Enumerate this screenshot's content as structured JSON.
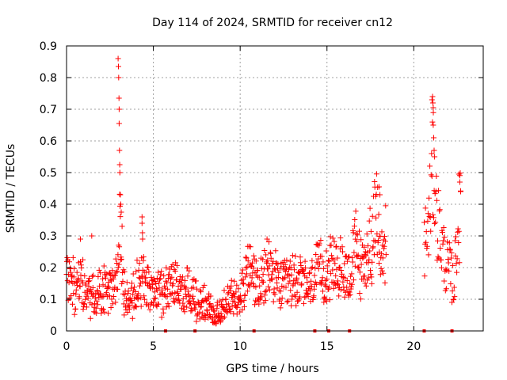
{
  "chart_data": {
    "type": "scatter",
    "title": "Day 114 of 2024, SRMTID for receiver cn12",
    "xlabel": "GPS time / hours",
    "ylabel": "SRMTID / TECUs",
    "xlim": [
      0,
      24
    ],
    "ylim": [
      0,
      0.9
    ],
    "x_ticks": [
      0,
      5,
      10,
      15,
      20
    ],
    "x_tick_labels": [
      "0",
      "5",
      "10",
      "15",
      "20"
    ],
    "y_ticks": [
      0,
      0.1,
      0.2,
      0.3,
      0.4,
      0.5,
      0.6,
      0.7,
      0.8,
      0.9
    ],
    "y_tick_labels": [
      "0",
      "0.1",
      "0.2",
      "0.3",
      "0.4",
      "0.5",
      "0.6",
      "0.7",
      "0.8",
      "0.9"
    ],
    "grid": true,
    "marker": "+",
    "color": "#ff0000",
    "profile_hours": [
      0,
      0.3,
      0.6,
      0.8,
      1.2,
      1.6,
      2.0,
      2.4,
      2.7,
      2.95,
      3.05,
      3.3,
      3.6,
      4.0,
      4.3,
      4.6,
      5.0,
      5.4,
      5.8,
      6.2,
      6.6,
      7.0,
      7.4,
      7.8,
      8.2,
      8.6,
      9.0,
      9.4,
      9.8,
      10.2,
      10.5,
      10.8,
      11.1,
      11.4,
      11.7,
      12.0,
      12.4,
      12.8,
      13.2,
      13.6,
      14.0,
      14.4,
      14.8,
      15.2,
      15.6,
      16.0,
      16.4,
      16.7,
      17.0,
      17.3,
      17.6,
      17.9,
      18.1,
      18.4
    ],
    "profile_levels": [
      0.17,
      0.14,
      0.16,
      0.18,
      0.11,
      0.12,
      0.13,
      0.14,
      0.14,
      0.15,
      0.35,
      0.13,
      0.11,
      0.13,
      0.17,
      0.15,
      0.13,
      0.12,
      0.14,
      0.15,
      0.13,
      0.12,
      0.11,
      0.09,
      0.07,
      0.06,
      0.07,
      0.09,
      0.11,
      0.15,
      0.2,
      0.17,
      0.13,
      0.16,
      0.21,
      0.16,
      0.14,
      0.15,
      0.17,
      0.15,
      0.13,
      0.18,
      0.19,
      0.19,
      0.2,
      0.19,
      0.18,
      0.28,
      0.18,
      0.24,
      0.29,
      0.36,
      0.22,
      0.29
    ],
    "gap_hours": [
      18.5,
      20.5
    ],
    "segment2_hours": [
      20.6,
      20.8,
      21.0,
      21.15,
      21.3,
      21.5,
      21.7,
      21.9,
      22.1,
      22.3,
      22.5,
      22.7
    ],
    "segment2_levels": [
      0.28,
      0.3,
      0.45,
      0.52,
      0.38,
      0.3,
      0.25,
      0.2,
      0.19,
      0.14,
      0.3,
      0.38
    ],
    "spikes": [
      {
        "x": 2.97,
        "y": 0.86
      },
      {
        "x": 2.99,
        "y": 0.835
      },
      {
        "x": 3.0,
        "y": 0.8
      },
      {
        "x": 3.02,
        "y": 0.735
      },
      {
        "x": 3.03,
        "y": 0.7
      },
      {
        "x": 3.03,
        "y": 0.655
      },
      {
        "x": 3.05,
        "y": 0.57
      },
      {
        "x": 3.06,
        "y": 0.525
      },
      {
        "x": 3.07,
        "y": 0.5
      },
      {
        "x": 3.1,
        "y": 0.43
      },
      {
        "x": 3.12,
        "y": 0.4
      },
      {
        "x": 3.15,
        "y": 0.375
      },
      {
        "x": 4.35,
        "y": 0.36
      },
      {
        "x": 4.35,
        "y": 0.34
      },
      {
        "x": 4.37,
        "y": 0.31
      },
      {
        "x": 4.38,
        "y": 0.29
      },
      {
        "x": 21.05,
        "y": 0.73
      },
      {
        "x": 21.08,
        "y": 0.74
      },
      {
        "x": 21.1,
        "y": 0.72
      },
      {
        "x": 21.12,
        "y": 0.705
      },
      {
        "x": 21.12,
        "y": 0.65
      },
      {
        "x": 21.15,
        "y": 0.61
      },
      {
        "x": 21.17,
        "y": 0.57
      },
      {
        "x": 21.2,
        "y": 0.55
      },
      {
        "x": 22.6,
        "y": 0.495
      },
      {
        "x": 22.65,
        "y": 0.47
      },
      {
        "x": 22.7,
        "y": 0.44
      },
      {
        "x": 18.0,
        "y": 0.455
      },
      {
        "x": 18.05,
        "y": 0.43
      },
      {
        "x": 1.45,
        "y": 0.3
      },
      {
        "x": 11.55,
        "y": 0.29
      },
      {
        "x": 0.8,
        "y": 0.29
      }
    ],
    "baseline_flags": [
      5.7,
      7.4,
      10.8,
      14.3,
      15.1,
      16.3,
      20.6,
      22.2
    ]
  }
}
